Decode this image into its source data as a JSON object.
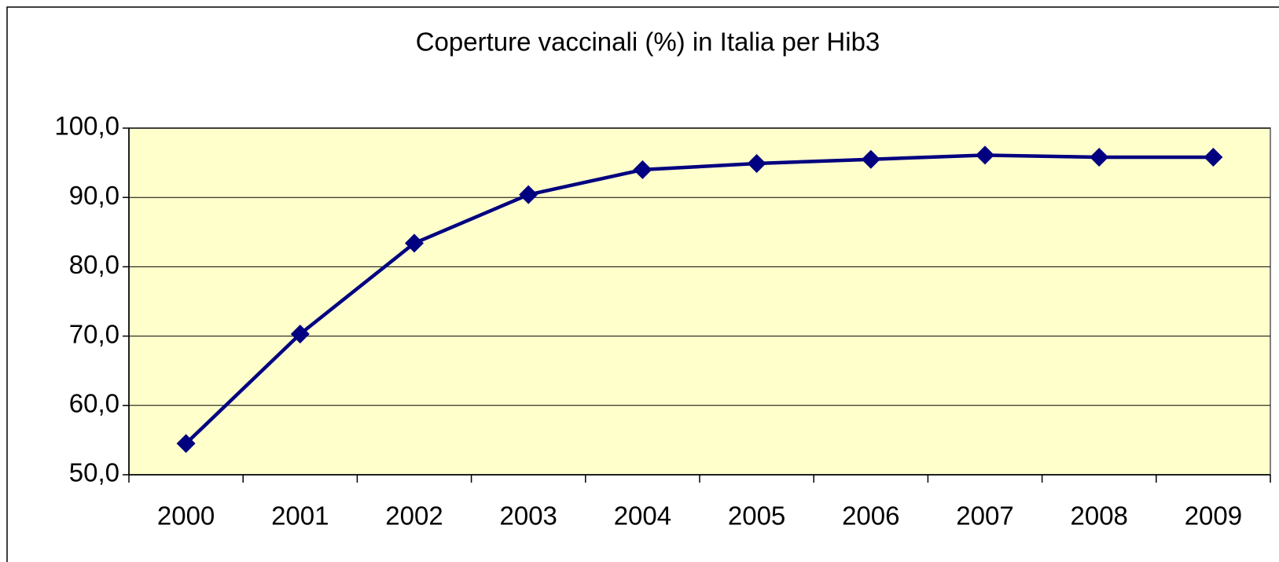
{
  "chart_data": {
    "type": "line",
    "title": "Coperture vaccinali (%) in Italia per Hib3",
    "categories": [
      "2000",
      "2001",
      "2002",
      "2003",
      "2004",
      "2005",
      "2006",
      "2007",
      "2008",
      "2009"
    ],
    "series": [
      {
        "color": "#000080",
        "values": [
          54.5,
          70.3,
          83.4,
          90.4,
          94.0,
          94.9,
          95.5,
          96.1,
          95.8,
          95.8
        ]
      }
    ],
    "ylim": [
      50,
      100
    ],
    "yticks": [
      {
        "value": 50,
        "label": "50,0"
      },
      {
        "value": 60,
        "label": "60,0"
      },
      {
        "value": 70,
        "label": "70,0"
      },
      {
        "value": 80,
        "label": "80,0"
      },
      {
        "value": 90,
        "label": "90,0"
      },
      {
        "value": 100,
        "label": "100,0"
      }
    ],
    "grid": true
  }
}
